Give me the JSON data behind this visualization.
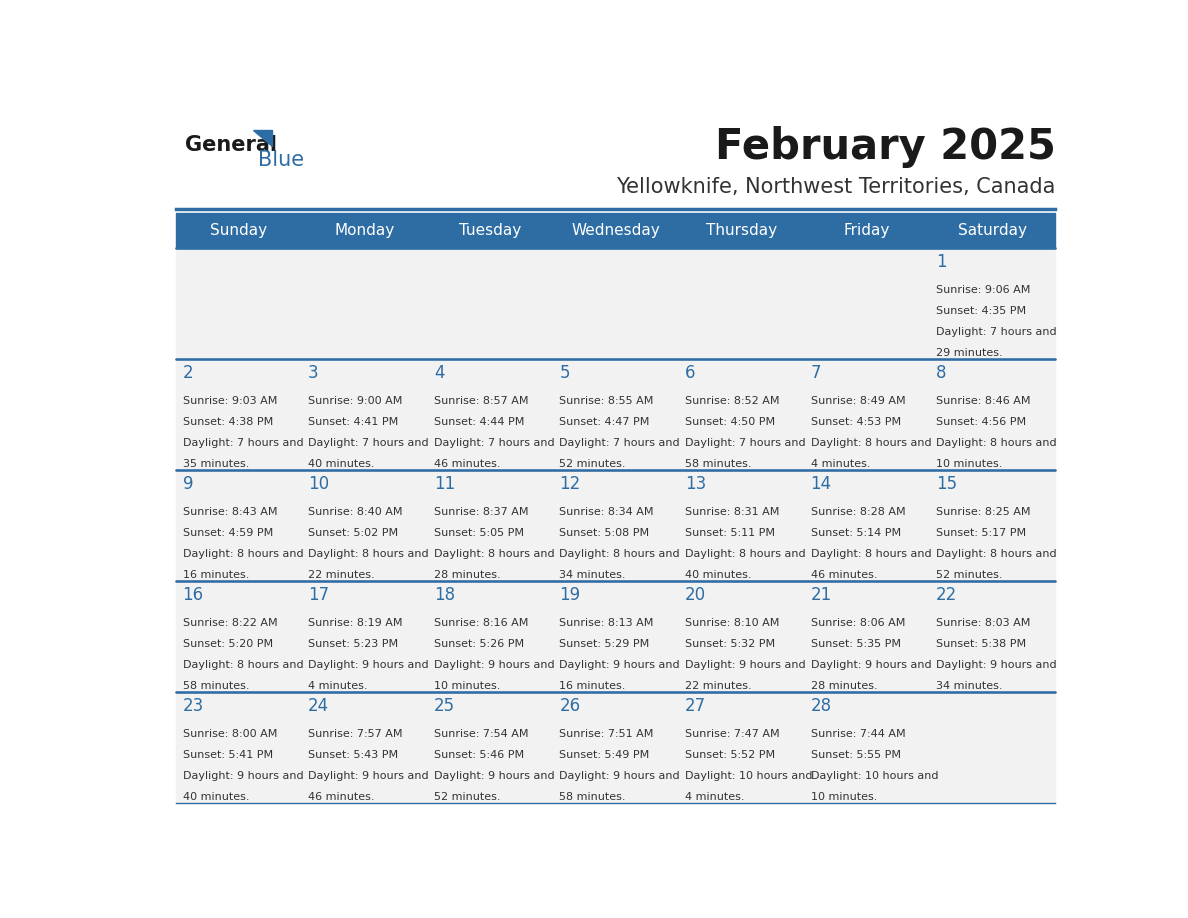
{
  "title": "February 2025",
  "subtitle": "Yellowknife, Northwest Territories, Canada",
  "days_of_week": [
    "Sunday",
    "Monday",
    "Tuesday",
    "Wednesday",
    "Thursday",
    "Friday",
    "Saturday"
  ],
  "header_bg": "#2E6DA4",
  "header_text": "#FFFFFF",
  "cell_bg_light": "#F2F2F2",
  "cell_bg_white": "#FFFFFF",
  "date_color": "#2E6DA4",
  "text_color": "#333333",
  "line_color": "#2E6DA4",
  "calendar": [
    [
      null,
      null,
      null,
      null,
      null,
      null,
      1
    ],
    [
      2,
      3,
      4,
      5,
      6,
      7,
      8
    ],
    [
      9,
      10,
      11,
      12,
      13,
      14,
      15
    ],
    [
      16,
      17,
      18,
      19,
      20,
      21,
      22
    ],
    [
      23,
      24,
      25,
      26,
      27,
      28,
      null
    ]
  ],
  "cell_data": {
    "1": {
      "sunrise": "9:06 AM",
      "sunset": "4:35 PM",
      "daylight": "7 hours and 29 minutes."
    },
    "2": {
      "sunrise": "9:03 AM",
      "sunset": "4:38 PM",
      "daylight": "7 hours and 35 minutes."
    },
    "3": {
      "sunrise": "9:00 AM",
      "sunset": "4:41 PM",
      "daylight": "7 hours and 40 minutes."
    },
    "4": {
      "sunrise": "8:57 AM",
      "sunset": "4:44 PM",
      "daylight": "7 hours and 46 minutes."
    },
    "5": {
      "sunrise": "8:55 AM",
      "sunset": "4:47 PM",
      "daylight": "7 hours and 52 minutes."
    },
    "6": {
      "sunrise": "8:52 AM",
      "sunset": "4:50 PM",
      "daylight": "7 hours and 58 minutes."
    },
    "7": {
      "sunrise": "8:49 AM",
      "sunset": "4:53 PM",
      "daylight": "8 hours and 4 minutes."
    },
    "8": {
      "sunrise": "8:46 AM",
      "sunset": "4:56 PM",
      "daylight": "8 hours and 10 minutes."
    },
    "9": {
      "sunrise": "8:43 AM",
      "sunset": "4:59 PM",
      "daylight": "8 hours and 16 minutes."
    },
    "10": {
      "sunrise": "8:40 AM",
      "sunset": "5:02 PM",
      "daylight": "8 hours and 22 minutes."
    },
    "11": {
      "sunrise": "8:37 AM",
      "sunset": "5:05 PM",
      "daylight": "8 hours and 28 minutes."
    },
    "12": {
      "sunrise": "8:34 AM",
      "sunset": "5:08 PM",
      "daylight": "8 hours and 34 minutes."
    },
    "13": {
      "sunrise": "8:31 AM",
      "sunset": "5:11 PM",
      "daylight": "8 hours and 40 minutes."
    },
    "14": {
      "sunrise": "8:28 AM",
      "sunset": "5:14 PM",
      "daylight": "8 hours and 46 minutes."
    },
    "15": {
      "sunrise": "8:25 AM",
      "sunset": "5:17 PM",
      "daylight": "8 hours and 52 minutes."
    },
    "16": {
      "sunrise": "8:22 AM",
      "sunset": "5:20 PM",
      "daylight": "8 hours and 58 minutes."
    },
    "17": {
      "sunrise": "8:19 AM",
      "sunset": "5:23 PM",
      "daylight": "9 hours and 4 minutes."
    },
    "18": {
      "sunrise": "8:16 AM",
      "sunset": "5:26 PM",
      "daylight": "9 hours and 10 minutes."
    },
    "19": {
      "sunrise": "8:13 AM",
      "sunset": "5:29 PM",
      "daylight": "9 hours and 16 minutes."
    },
    "20": {
      "sunrise": "8:10 AM",
      "sunset": "5:32 PM",
      "daylight": "9 hours and 22 minutes."
    },
    "21": {
      "sunrise": "8:06 AM",
      "sunset": "5:35 PM",
      "daylight": "9 hours and 28 minutes."
    },
    "22": {
      "sunrise": "8:03 AM",
      "sunset": "5:38 PM",
      "daylight": "9 hours and 34 minutes."
    },
    "23": {
      "sunrise": "8:00 AM",
      "sunset": "5:41 PM",
      "daylight": "9 hours and 40 minutes."
    },
    "24": {
      "sunrise": "7:57 AM",
      "sunset": "5:43 PM",
      "daylight": "9 hours and 46 minutes."
    },
    "25": {
      "sunrise": "7:54 AM",
      "sunset": "5:46 PM",
      "daylight": "9 hours and 52 minutes."
    },
    "26": {
      "sunrise": "7:51 AM",
      "sunset": "5:49 PM",
      "daylight": "9 hours and 58 minutes."
    },
    "27": {
      "sunrise": "7:47 AM",
      "sunset": "5:52 PM",
      "daylight": "10 hours and 4 minutes."
    },
    "28": {
      "sunrise": "7:44 AM",
      "sunset": "5:55 PM",
      "daylight": "10 hours and 10 minutes."
    }
  }
}
